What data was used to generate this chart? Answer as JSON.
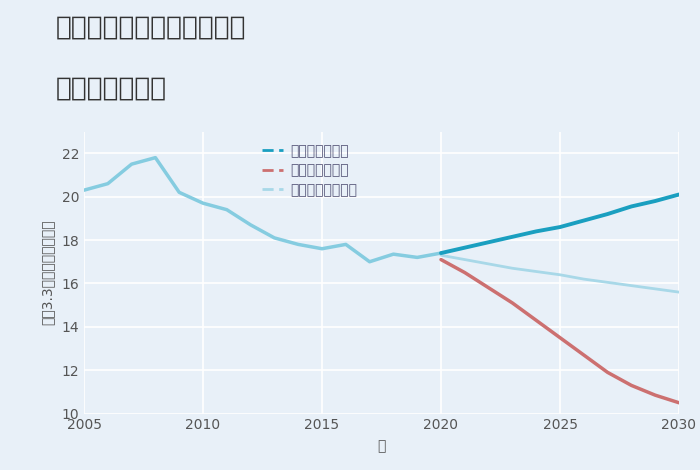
{
  "title_line1": "三重県松阪市嬉野小村町の",
  "title_line2": "土地の価格推移",
  "xlabel": "年",
  "ylabel": "坪（3.3㎡）単価（万円）",
  "ylim": [
    10,
    23
  ],
  "xlim": [
    2005,
    2030
  ],
  "yticks": [
    10,
    12,
    14,
    16,
    18,
    20,
    22
  ],
  "xticks": [
    2005,
    2010,
    2015,
    2020,
    2025,
    2030
  ],
  "background_color": "#e8f0f8",
  "plot_bg_color": "#e8f0f8",
  "grid_color": "#ffffff",
  "historical": {
    "years": [
      2005,
      2006,
      2007,
      2008,
      2009,
      2010,
      2011,
      2012,
      2013,
      2014,
      2015,
      2016,
      2017,
      2018,
      2019,
      2020
    ],
    "values": [
      20.3,
      20.6,
      21.5,
      21.8,
      20.2,
      19.7,
      19.4,
      18.7,
      18.1,
      17.8,
      17.6,
      17.8,
      17.0,
      17.35,
      17.2,
      17.4
    ],
    "color": "#85cce0",
    "linewidth": 2.5
  },
  "good": {
    "years": [
      2020,
      2021,
      2022,
      2023,
      2024,
      2025,
      2026,
      2027,
      2028,
      2029,
      2030
    ],
    "values": [
      17.4,
      17.65,
      17.9,
      18.15,
      18.4,
      18.6,
      18.9,
      19.2,
      19.55,
      19.8,
      20.1
    ],
    "color": "#1a9fc0",
    "linewidth": 2.8,
    "label": "グッドシナリオ"
  },
  "bad": {
    "years": [
      2020,
      2021,
      2022,
      2023,
      2024,
      2025,
      2026,
      2027,
      2028,
      2029,
      2030
    ],
    "values": [
      17.1,
      16.5,
      15.8,
      15.1,
      14.3,
      13.5,
      12.7,
      11.9,
      11.3,
      10.85,
      10.5
    ],
    "color": "#cc7070",
    "linewidth": 2.5,
    "label": "バッドシナリオ"
  },
  "normal": {
    "years": [
      2020,
      2021,
      2022,
      2023,
      2024,
      2025,
      2026,
      2027,
      2028,
      2029,
      2030
    ],
    "values": [
      17.3,
      17.1,
      16.9,
      16.7,
      16.55,
      16.4,
      16.2,
      16.05,
      15.9,
      15.75,
      15.6
    ],
    "color": "#a8d8e8",
    "linewidth": 2.0,
    "label": "ノーマルシナリオ"
  },
  "title_fontsize": 19,
  "label_fontsize": 10,
  "tick_fontsize": 10,
  "legend_fontsize": 10
}
